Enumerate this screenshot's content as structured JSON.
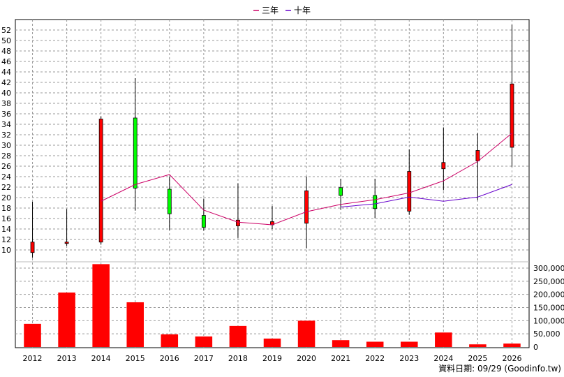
{
  "chart_data": {
    "type": "candlestick",
    "legend": [
      {
        "label": "三年",
        "color": "#cc0066"
      },
      {
        "label": "十年",
        "color": "#6600cc"
      }
    ],
    "categories": [
      "2012",
      "2013",
      "2014",
      "2015",
      "2016",
      "2017",
      "2018",
      "2019",
      "2020",
      "2021",
      "2022",
      "2023",
      "2024",
      "2025",
      "2026"
    ],
    "price_axis": {
      "ylim": [
        8,
        54
      ],
      "ticks": [
        10,
        12,
        14,
        16,
        18,
        20,
        22,
        24,
        26,
        28,
        30,
        32,
        34,
        36,
        38,
        40,
        42,
        44,
        46,
        48,
        50,
        52
      ]
    },
    "candles": [
      {
        "x": "2012",
        "open": 9.5,
        "close": 11.5,
        "high": 19.2,
        "low": 8.5,
        "color": "red"
      },
      {
        "x": "2013",
        "open": 11.3,
        "close": 11.5,
        "high": 17.8,
        "low": 10.8,
        "color": "red"
      },
      {
        "x": "2014",
        "open": 11.5,
        "close": 35.0,
        "high": 35.5,
        "low": 11.0,
        "color": "red"
      },
      {
        "x": "2015",
        "open": 35.2,
        "close": 21.8,
        "high": 42.8,
        "low": 17.5,
        "color": "green"
      },
      {
        "x": "2016",
        "open": 21.6,
        "close": 16.9,
        "high": 24.0,
        "low": 13.8,
        "color": "green"
      },
      {
        "x": "2017",
        "open": 16.6,
        "close": 14.3,
        "high": 19.8,
        "low": 13.7,
        "color": "green"
      },
      {
        "x": "2018",
        "open": 14.6,
        "close": 15.7,
        "high": 22.7,
        "low": 12.3,
        "color": "red"
      },
      {
        "x": "2019",
        "open": 14.8,
        "close": 15.4,
        "high": 18.4,
        "low": 14.0,
        "color": "red"
      },
      {
        "x": "2020",
        "open": 15.1,
        "close": 21.3,
        "high": 24.0,
        "low": 10.3,
        "color": "red"
      },
      {
        "x": "2021",
        "open": 21.9,
        "close": 20.4,
        "high": 23.6,
        "low": 17.7,
        "color": "green"
      },
      {
        "x": "2022",
        "open": 20.4,
        "close": 17.9,
        "high": 23.6,
        "low": 16.1,
        "color": "green"
      },
      {
        "x": "2023",
        "open": 17.4,
        "close": 25.0,
        "high": 29.2,
        "low": 16.7,
        "color": "red"
      },
      {
        "x": "2024",
        "open": 25.5,
        "close": 26.7,
        "high": 33.4,
        "low": 21.4,
        "color": "red"
      },
      {
        "x": "2025",
        "open": 27.0,
        "close": 29.0,
        "high": 32.3,
        "low": 19.5,
        "color": "red"
      },
      {
        "x": "2026",
        "open": 29.6,
        "close": 41.7,
        "high": 53.0,
        "low": 25.9,
        "color": "red"
      }
    ],
    "series": [
      {
        "name": "三年",
        "color": "#cc0066",
        "points": [
          [
            "2014",
            19.3
          ],
          [
            "2015",
            22.5
          ],
          [
            "2016",
            24.4
          ],
          [
            "2017",
            17.6
          ],
          [
            "2018",
            15.3
          ],
          [
            "2019",
            14.8
          ],
          [
            "2020",
            17.3
          ],
          [
            "2021",
            18.7
          ],
          [
            "2022",
            19.6
          ],
          [
            "2023",
            20.9
          ],
          [
            "2024",
            23.2
          ],
          [
            "2025",
            26.9
          ],
          [
            "2026",
            32.3
          ]
        ]
      },
      {
        "name": "十年",
        "color": "#6600cc",
        "points": [
          [
            "2021",
            18.2
          ],
          [
            "2022",
            18.8
          ],
          [
            "2023",
            20.1
          ],
          [
            "2024",
            19.3
          ],
          [
            "2025",
            20.1
          ],
          [
            "2026",
            22.5
          ]
        ]
      }
    ],
    "volume_axis": {
      "ylim": [
        0,
        300000
      ],
      "ticks": [
        0,
        50000,
        100000,
        150000,
        200000,
        250000,
        300000
      ],
      "tick_labels": [
        "0",
        "50,000",
        "100,000",
        "150,000",
        "200,000",
        "250,000",
        "300,000"
      ]
    },
    "volume": [
      88000,
      207000,
      315000,
      170000,
      48000,
      40000,
      80000,
      32000,
      100000,
      26000,
      20000,
      20000,
      55000,
      10000,
      13000
    ],
    "volume_color": "#ff0000",
    "grid": true,
    "legend_position": "top-center",
    "footer": "資料日期: 09/29  (Goodinfo.tw)"
  }
}
